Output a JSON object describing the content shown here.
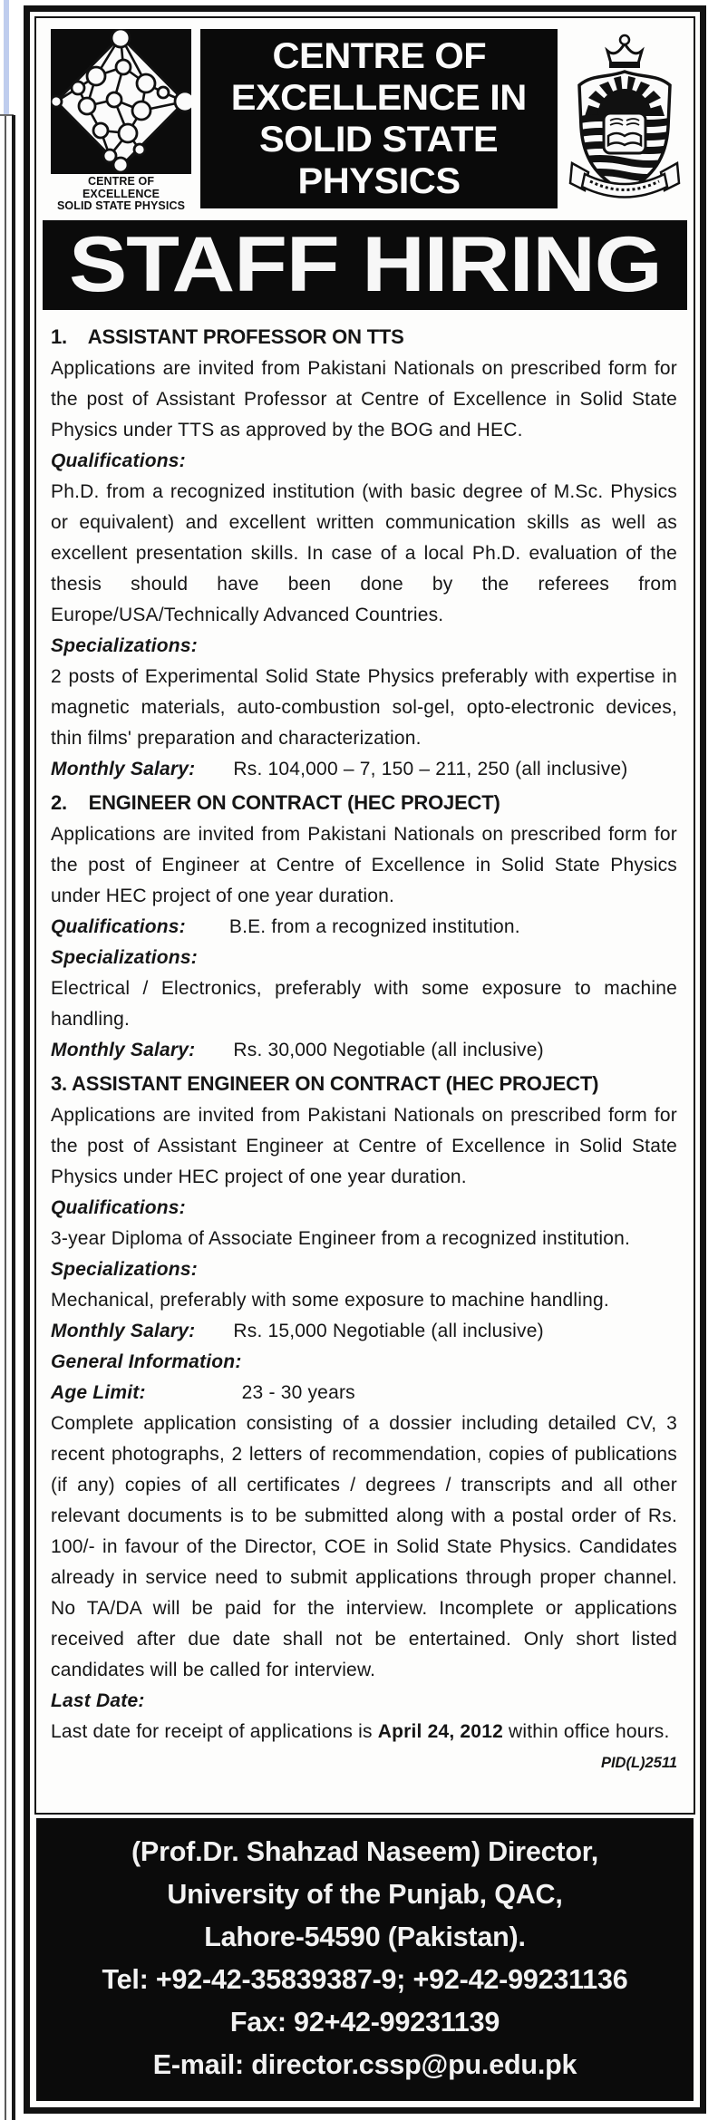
{
  "colors": {
    "ink": "#161616",
    "banner_bg": "#0b0b0b",
    "footer_bg": "#0b0b0b",
    "paper": "#fdfdfc",
    "edge_strip_blue": "#bfcdee"
  },
  "header": {
    "left_logo_caption": [
      "CENTRE OF EXCELLENCE",
      "SOLID STATE PHYSICS"
    ],
    "title_lines": [
      "CENTRE OF",
      "EXCELLENCE IN",
      "SOLID STATE",
      "PHYSICS"
    ]
  },
  "banner": {
    "text": "STAFF HIRING"
  },
  "body": {
    "blocks": [
      {
        "type": "heading",
        "text": "1.    ASSISTANT PROFESSOR ON TTS"
      },
      {
        "type": "para",
        "text": "Applications are invited from Pakistani Nationals on prescribed form for the post of Assistant Professor at Centre of Excellence in Solid State Physics under TTS as approved by the BOG and HEC."
      },
      {
        "type": "label",
        "text": "Qualifications:"
      },
      {
        "type": "para",
        "text": "Ph.D. from a recognized institution (with basic degree of M.Sc. Physics or equivalent) and excellent written communication skills as well as excellent presentation skills. In case of a local Ph.D. evaluation of the thesis should have been done by the referees from Europe/USA/Technically Advanced Countries."
      },
      {
        "type": "label",
        "text": "Specializations:"
      },
      {
        "type": "para",
        "text": "2 posts of Experimental Solid State Physics preferably with expertise in magnetic materials, auto-combustion sol-gel, opto-electronic devices, thin films' preparation and characterization."
      },
      {
        "type": "labeled",
        "label": "Monthly Salary:",
        "gap": 42,
        "text": "Rs. 104,000 – 7, 150 – 211, 250 (all inclusive)"
      },
      {
        "type": "heading",
        "text": "2.    ENGINEER ON CONTRACT (HEC PROJECT)"
      },
      {
        "type": "para",
        "text": "Applications are invited from Pakistani Nationals on prescribed form for the post of Engineer at Centre of Excellence in Solid State Physics under HEC project of one year duration."
      },
      {
        "type": "labeled",
        "label": "Qualifications:",
        "gap": 48,
        "text": "B.E. from a recognized institution."
      },
      {
        "type": "label",
        "text": "Specializations:"
      },
      {
        "type": "para",
        "text": "Electrical / Electronics, preferably with some exposure to machine handling."
      },
      {
        "type": "labeled",
        "label": "Monthly Salary:",
        "gap": 42,
        "text": "Rs. 30,000 Negotiable (all inclusive)"
      },
      {
        "type": "heading",
        "text": "3. ASSISTANT ENGINEER ON CONTRACT (HEC PROJECT)"
      },
      {
        "type": "para",
        "text": "Applications are invited from Pakistani Nationals on prescribed form for the post of Assistant Engineer at Centre of Excellence in Solid State Physics under HEC project of one year duration."
      },
      {
        "type": "label",
        "text": "Qualifications:"
      },
      {
        "type": "para",
        "text": "3-year Diploma of Associate Engineer from a recognized institution."
      },
      {
        "type": "label",
        "text": "Specializations:"
      },
      {
        "type": "para",
        "text": "Mechanical, preferably with some exposure to machine handling."
      },
      {
        "type": "labeled",
        "label": "Monthly Salary:",
        "gap": 42,
        "text": "Rs. 15,000 Negotiable (all inclusive)"
      },
      {
        "type": "label",
        "text": "General Information:"
      },
      {
        "type": "labeled",
        "label": "Age Limit:",
        "gap": 106,
        "text": "23 - 30 years"
      },
      {
        "type": "para",
        "text": "Complete application consisting of a dossier including detailed CV, 3 recent photographs, 2 letters of recommendation, copies of publications (if any) copies of all certificates / degrees / transcripts and all other relevant documents is to be submitted along with a postal order of Rs. 100/- in favour of the Director, COE in Solid State Physics. Candidates already in service need to submit applications through proper channel. No TA/DA will be paid for the interview. Incomplete or applications received after due date shall not be entertained. Only short listed candidates will be called for interview."
      },
      {
        "type": "label",
        "text": "Last Date:"
      },
      {
        "type": "last",
        "pre": "Last date for receipt of applications is ",
        "bold": "April 24, 2012",
        "post": " within office hours.",
        "pid": "PID(L)2511"
      }
    ]
  },
  "footer": {
    "lines": [
      "(Prof.Dr. Shahzad Naseem) Director,",
      "University of the Punjab, QAC,",
      "Lahore-54590 (Pakistan).",
      "Tel: +92-42-35839387-9; +92-42-99231136",
      "Fax: 92+42-99231139",
      "E-mail: director.cssp@pu.edu.pk"
    ]
  }
}
